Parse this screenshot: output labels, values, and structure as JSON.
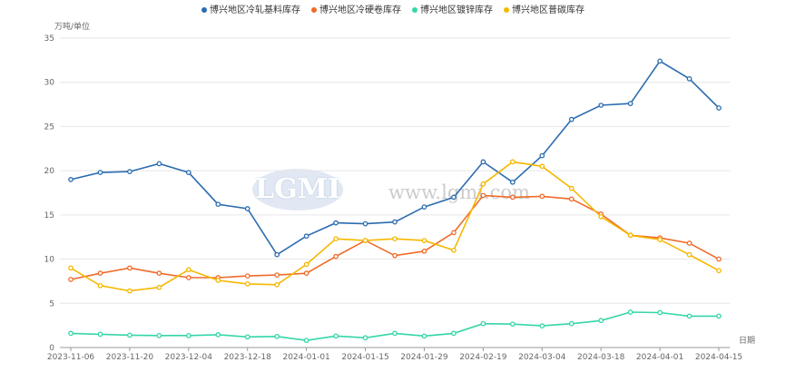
{
  "chart_data": {
    "type": "line",
    "ylabel": "万吨/单位",
    "xlabel": "日期",
    "ylim": [
      0,
      35
    ],
    "yticks": [
      0,
      5,
      10,
      15,
      20,
      25,
      30,
      35
    ],
    "categories": [
      "2023-11-06",
      "2023-11-13",
      "2023-11-20",
      "2023-11-27",
      "2023-12-04",
      "2023-12-11",
      "2023-12-18",
      "2023-12-25",
      "2024-01-01",
      "2024-01-08",
      "2024-01-15",
      "2024-01-22",
      "2024-01-29",
      "2024-02-05",
      "2024-02-19",
      "2024-02-26",
      "2024-03-04",
      "2024-03-11",
      "2024-03-18",
      "2024-03-25",
      "2024-04-01",
      "2024-04-08",
      "2024-04-15"
    ],
    "x_tick_labels": [
      "2023-11-06",
      "2023-11-20",
      "2023-12-04",
      "2023-12-18",
      "2024-01-01",
      "2024-01-15",
      "2024-01-29",
      "2024-02-19",
      "2024-03-04",
      "2024-03-18",
      "2024-04-01",
      "2024-04-15"
    ],
    "x_tick_indices": [
      0,
      2,
      4,
      6,
      8,
      10,
      12,
      14,
      16,
      18,
      20,
      22
    ],
    "grid": true,
    "legend_position": "top-center",
    "series": [
      {
        "name": "博兴地区冷轧基料库存",
        "color": "#2b6cb0",
        "values": [
          19.0,
          19.8,
          19.9,
          20.8,
          19.8,
          16.2,
          15.7,
          10.5,
          12.6,
          14.1,
          14.0,
          14.2,
          15.9,
          17.0,
          21.0,
          18.7,
          21.7,
          25.8,
          27.4,
          27.6,
          32.4,
          30.4,
          27.1
        ]
      },
      {
        "name": "博兴地区冷硬卷库存",
        "color": "#f06b2a",
        "values": [
          7.7,
          8.4,
          9.0,
          8.4,
          7.9,
          7.9,
          8.1,
          8.2,
          8.4,
          10.3,
          12.1,
          10.4,
          10.9,
          13.0,
          17.2,
          17.0,
          17.1,
          16.8,
          15.1,
          12.7,
          12.4,
          11.8,
          10.0
        ]
      },
      {
        "name": "博兴地区镀锌库存",
        "color": "#34d6a8",
        "values": [
          1.6,
          1.5,
          1.4,
          1.35,
          1.35,
          1.45,
          1.2,
          1.25,
          0.8,
          1.3,
          1.1,
          1.6,
          1.3,
          1.6,
          2.7,
          2.65,
          2.45,
          2.7,
          3.05,
          4.0,
          3.95,
          3.55,
          3.55
        ]
      },
      {
        "name": "博兴地区普碳库存",
        "color": "#f5b800",
        "values": [
          9.0,
          7.0,
          6.4,
          6.8,
          8.8,
          7.6,
          7.2,
          7.1,
          9.4,
          12.3,
          12.1,
          12.3,
          12.1,
          11.0,
          18.5,
          21.0,
          20.5,
          18.0,
          14.8,
          12.7,
          12.2,
          10.5,
          8.7
        ]
      }
    ]
  },
  "watermark": {
    "logo_text": "LGMI",
    "url_text": "www.lgmi.com"
  }
}
